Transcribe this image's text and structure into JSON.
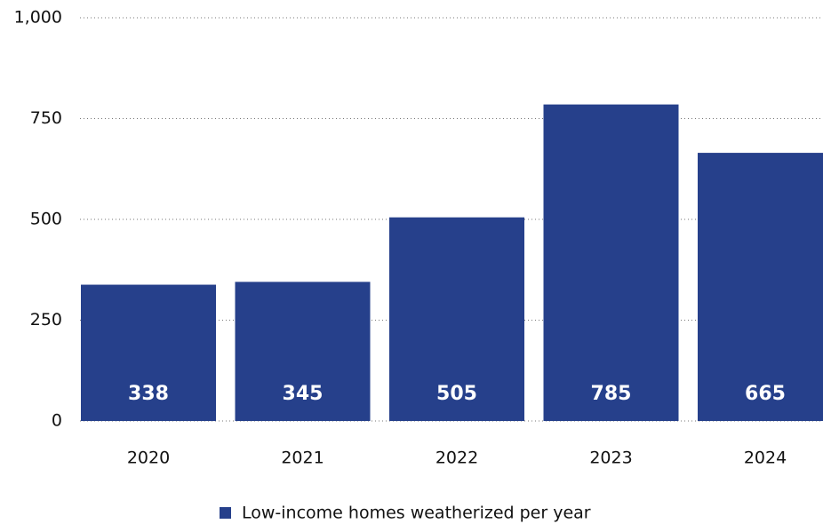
{
  "chart_data": {
    "type": "bar",
    "categories": [
      "2020",
      "2021",
      "2022",
      "2023",
      "2024"
    ],
    "series": [
      {
        "name": "Low-income homes weatherized per year",
        "color": "#26408b",
        "values": [
          338,
          345,
          505,
          785,
          665
        ]
      }
    ],
    "ylim": [
      0,
      1000
    ],
    "yticks": [
      0,
      250,
      500,
      750,
      {
        "value": 1000,
        "label": "1,000"
      }
    ],
    "grid": true,
    "legend": "bottom"
  }
}
